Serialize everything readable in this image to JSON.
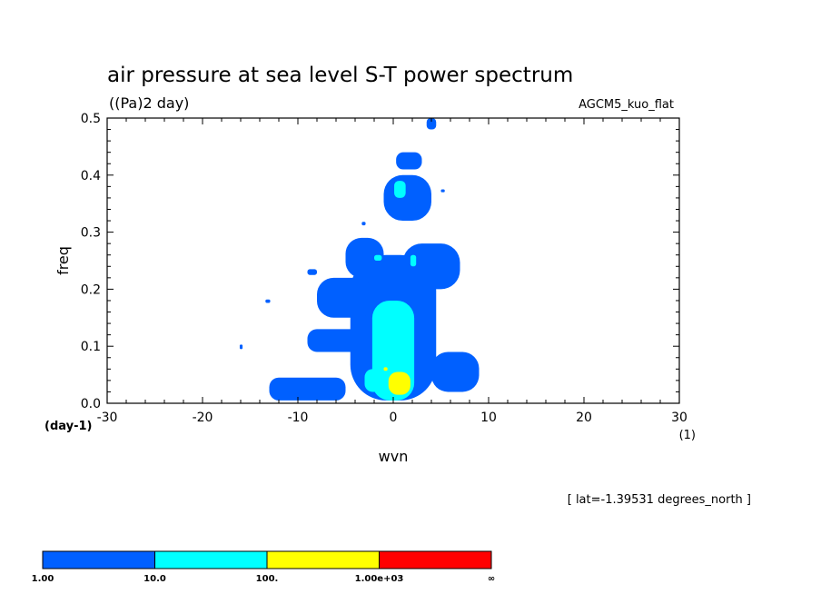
{
  "chart_data": {
    "type": "heatmap",
    "title": "air pressure at sea level S-T power spectrum",
    "units": "((Pa)2 day)",
    "model": "AGCM5_kuo_flat",
    "xlabel": "wvn",
    "ylabel": "freq",
    "x_unit_label": "(1)",
    "y_unit_label": "(day-1)",
    "xlim": [
      -30,
      30
    ],
    "ylim": [
      0,
      0.5
    ],
    "xticks": [
      -30,
      -20,
      -10,
      0,
      10,
      20,
      30
    ],
    "yticks": [
      0.0,
      0.1,
      0.2,
      0.3,
      0.4,
      0.5
    ],
    "xtick_labels": [
      "-30",
      "-20",
      "-10",
      "0",
      "10",
      "20",
      "30"
    ],
    "ytick_labels": [
      "0.0",
      "0.1",
      "0.2",
      "0.3",
      "0.4",
      "0.5"
    ],
    "annotation": "[ lat=-1.39531 degrees_north ]",
    "colorbar": {
      "colors": [
        "#0060ff",
        "#00ffff",
        "#ffff00",
        "#ff0000"
      ],
      "labels": [
        "1.00",
        "10.0",
        "100.",
        "1.00e+03",
        "∞"
      ]
    },
    "regions": [
      {
        "level": 0,
        "x": [
          -4.5,
          4.5
        ],
        "y": [
          0.005,
          0.26
        ]
      },
      {
        "level": 0,
        "x": [
          -13,
          -5
        ],
        "y": [
          0.005,
          0.045
        ]
      },
      {
        "level": 0,
        "x": [
          -9,
          -2
        ],
        "y": [
          0.09,
          0.13
        ]
      },
      {
        "level": 0,
        "x": [
          -8,
          -2
        ],
        "y": [
          0.15,
          0.22
        ]
      },
      {
        "level": 0,
        "x": [
          -5,
          -1
        ],
        "y": [
          0.22,
          0.29
        ]
      },
      {
        "level": 0,
        "x": [
          1,
          7
        ],
        "y": [
          0.2,
          0.28
        ]
      },
      {
        "level": 0,
        "x": [
          -1,
          4
        ],
        "y": [
          0.32,
          0.4
        ]
      },
      {
        "level": 0,
        "x": [
          0.3,
          3
        ],
        "y": [
          0.41,
          0.44
        ]
      },
      {
        "level": 0,
        "x": [
          4,
          9
        ],
        "y": [
          0.02,
          0.09
        ]
      },
      {
        "level": 0,
        "x": [
          3.5,
          4.5
        ],
        "y": [
          0.48,
          0.5
        ]
      },
      {
        "level": 0,
        "x": [
          -9,
          -8
        ],
        "y": [
          0.225,
          0.235
        ]
      },
      {
        "level": 0,
        "x": [
          -13.4,
          -12.9
        ],
        "y": [
          0.176,
          0.182
        ]
      },
      {
        "level": 0,
        "x": [
          -16.1,
          -15.8
        ],
        "y": [
          0.095,
          0.103
        ]
      },
      {
        "level": 0,
        "x": [
          5,
          5.4
        ],
        "y": [
          0.37,
          0.375
        ]
      },
      {
        "level": 0,
        "x": [
          -3.3,
          -2.9
        ],
        "y": [
          0.312,
          0.318
        ]
      },
      {
        "level": 1,
        "x": [
          -2.2,
          2.2
        ],
        "y": [
          0.005,
          0.18
        ]
      },
      {
        "level": 1,
        "x": [
          -3,
          -1
        ],
        "y": [
          0.02,
          0.06
        ]
      },
      {
        "level": 1,
        "x": [
          -2,
          -1.2
        ],
        "y": [
          0.25,
          0.26
        ]
      },
      {
        "level": 1,
        "x": [
          0.1,
          1.3
        ],
        "y": [
          0.36,
          0.39
        ]
      },
      {
        "level": 1,
        "x": [
          1.8,
          2.4
        ],
        "y": [
          0.24,
          0.26
        ]
      },
      {
        "level": 2,
        "x": [
          -0.5,
          1.8
        ],
        "y": [
          0.015,
          0.055
        ]
      },
      {
        "level": 2,
        "x": [
          -1,
          -0.6
        ],
        "y": [
          0.057,
          0.063
        ]
      }
    ]
  }
}
